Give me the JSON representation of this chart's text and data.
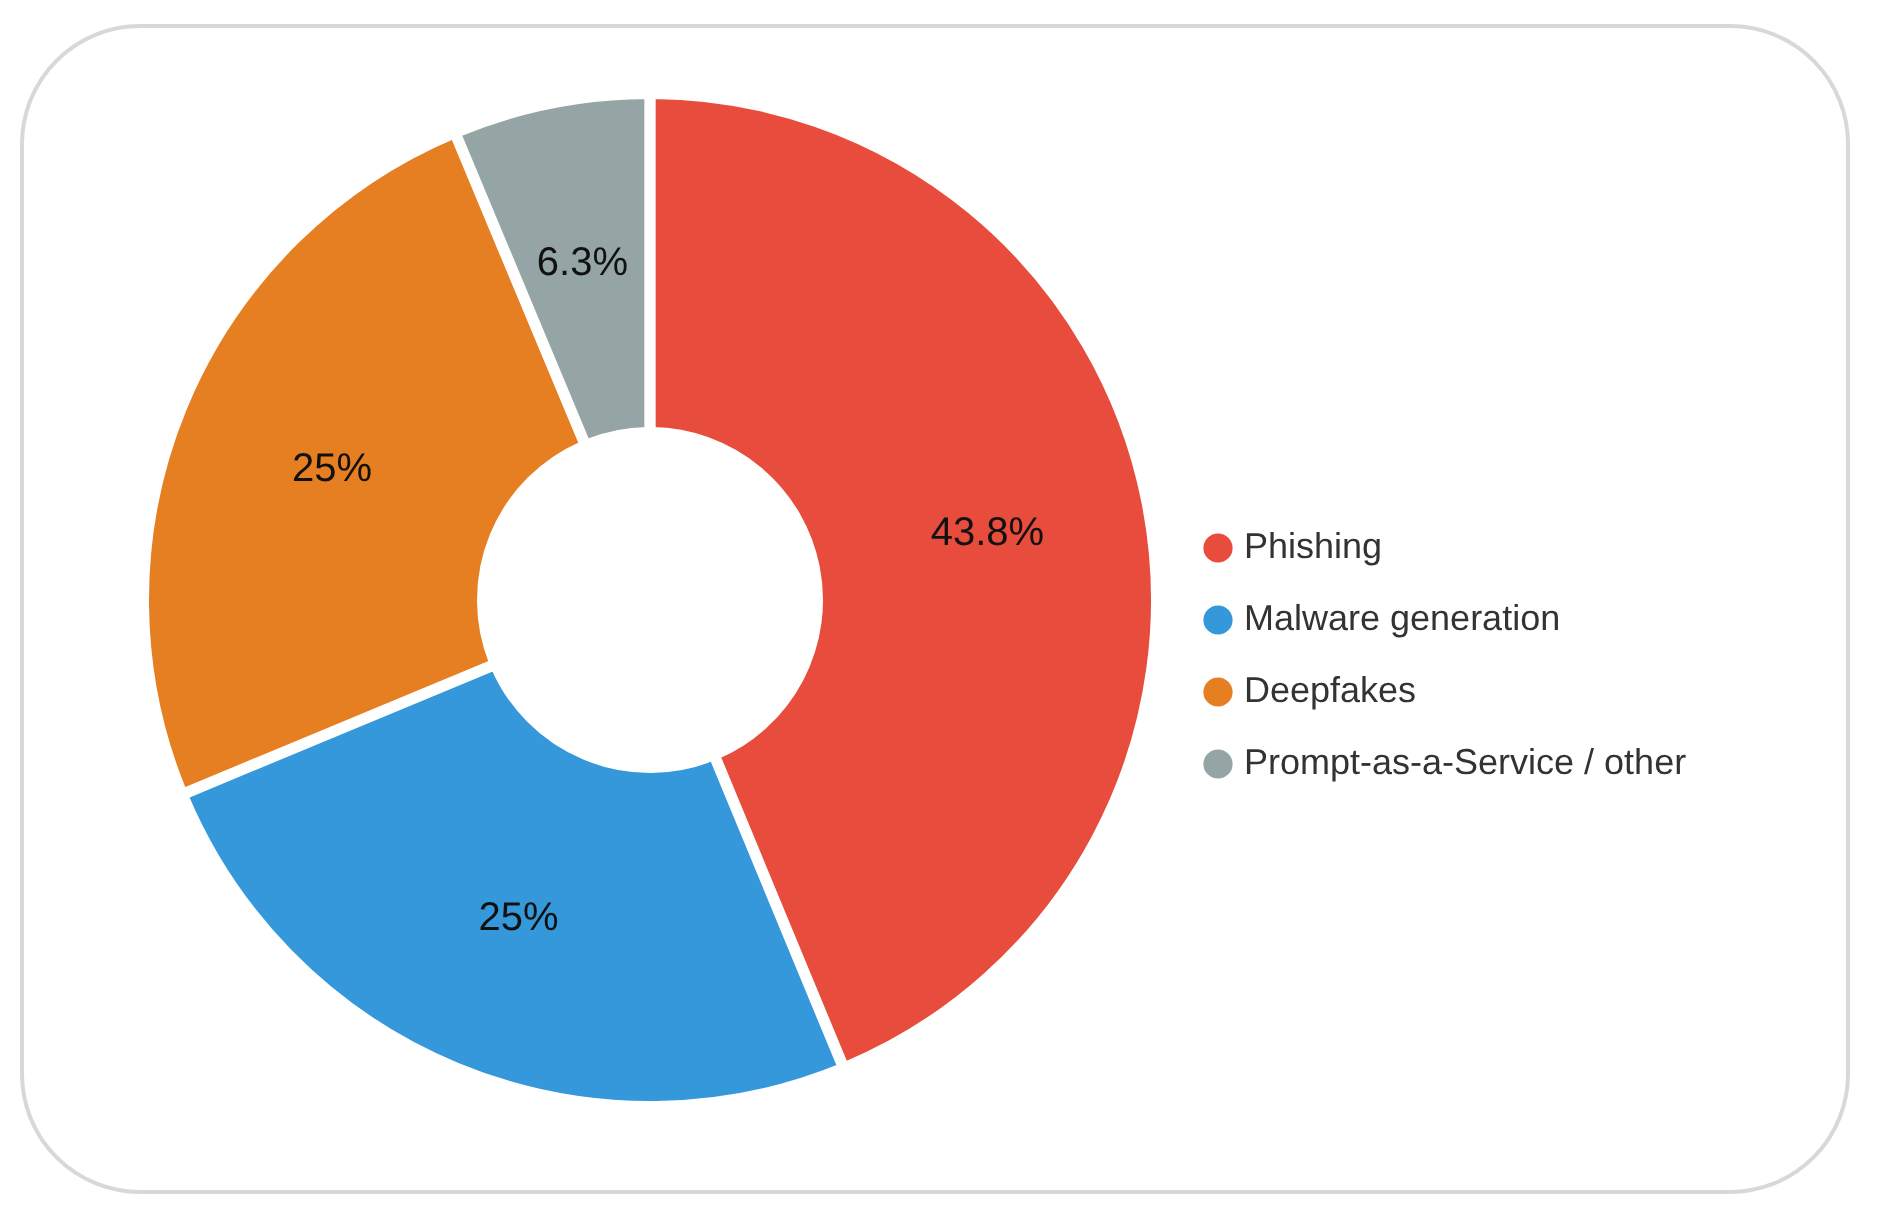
{
  "chart_data": {
    "type": "donut",
    "categories": [
      "Phishing",
      "Malware generation",
      "Deepfakes",
      "Prompt-as-a-Service / other"
    ],
    "values": [
      43.8,
      25,
      25,
      6.3
    ],
    "value_labels": [
      "43.8%",
      "25%",
      "25%",
      "6.3%"
    ],
    "colors": [
      "#e74c3c",
      "#3498db",
      "#e67e22",
      "#95a5a6"
    ],
    "legend": "right"
  }
}
